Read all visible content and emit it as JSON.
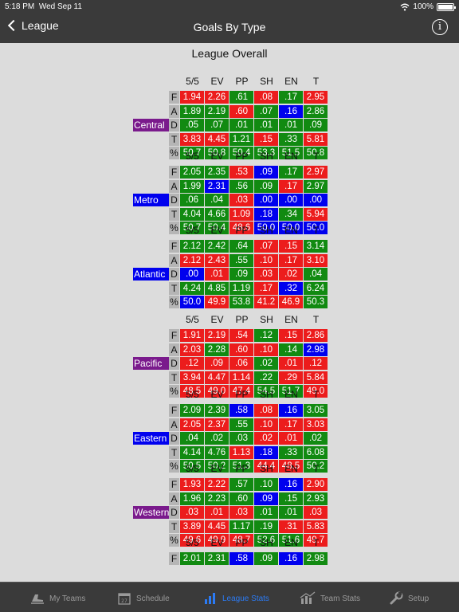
{
  "status": {
    "time": "5:18 PM",
    "date": "Wed Sep 11",
    "battery": "100%"
  },
  "nav": {
    "back_label": "League",
    "title": "Goals By Type",
    "info_glyph": "i"
  },
  "section_title": "League Overall",
  "columns": [
    "5/5",
    "EV",
    "PP",
    "SH",
    "EN",
    "T"
  ],
  "row_labels": [
    "F",
    "A",
    "D",
    "T",
    "%"
  ],
  "colors": {
    "green": "#118a11",
    "red": "#ec1c1c",
    "blue": "#0000ee",
    "purple": "#7a1a8c",
    "active_tab": "#2b7bf5"
  },
  "groups": [
    {
      "division": "Central",
      "division_color": "purple",
      "rows": [
        {
          "values": [
            "1.94",
            "2.26",
            ".61",
            ".08",
            ".17",
            "2.95"
          ],
          "colors": [
            "r",
            "r",
            "g",
            "r",
            "g",
            "r"
          ]
        },
        {
          "values": [
            "1.89",
            "2.19",
            ".60",
            ".07",
            ".16",
            "2.86"
          ],
          "colors": [
            "g",
            "g",
            "r",
            "g",
            "b",
            "g"
          ]
        },
        {
          "values": [
            ".05",
            ".07",
            ".01",
            ".01",
            ".01",
            ".09"
          ],
          "colors": [
            "g",
            "g",
            "g",
            "g",
            "g",
            "g"
          ]
        },
        {
          "values": [
            "3.83",
            "4.45",
            "1.21",
            ".15",
            ".33",
            "5.81"
          ],
          "colors": [
            "r",
            "r",
            "g",
            "r",
            "g",
            "r"
          ]
        },
        {
          "values": [
            "50.7",
            "50.8",
            "50.4",
            "53.3",
            "51.5",
            "50.8"
          ],
          "colors": [
            "g",
            "g",
            "g",
            "g",
            "g",
            "g"
          ]
        }
      ]
    },
    {
      "division": "Metro",
      "division_color": "blue",
      "rows": [
        {
          "values": [
            "2.05",
            "2.35",
            ".53",
            ".09",
            ".17",
            "2.97"
          ],
          "colors": [
            "g",
            "g",
            "r",
            "b",
            "g",
            "r"
          ]
        },
        {
          "values": [
            "1.99",
            "2.31",
            ".56",
            ".09",
            ".17",
            "2.97"
          ],
          "colors": [
            "g",
            "b",
            "g",
            "g",
            "r",
            "g"
          ]
        },
        {
          "values": [
            ".06",
            ".04",
            ".03",
            ".00",
            ".00",
            ".00"
          ],
          "colors": [
            "g",
            "g",
            "r",
            "b",
            "b",
            "b"
          ]
        },
        {
          "values": [
            "4.04",
            "4.66",
            "1.09",
            ".18",
            ".34",
            "5.94"
          ],
          "colors": [
            "g",
            "g",
            "r",
            "b",
            "g",
            "r"
          ]
        },
        {
          "values": [
            "50.7",
            "50.4",
            "48.6",
            "50.0",
            "50.0",
            "50.0"
          ],
          "colors": [
            "g",
            "g",
            "r",
            "b",
            "b",
            "b"
          ]
        }
      ]
    },
    {
      "division": "Atlantic",
      "division_color": "blue",
      "rows": [
        {
          "values": [
            "2.12",
            "2.42",
            ".64",
            ".07",
            ".15",
            "3.14"
          ],
          "colors": [
            "g",
            "g",
            "g",
            "r",
            "r",
            "g"
          ]
        },
        {
          "values": [
            "2.12",
            "2.43",
            ".55",
            ".10",
            ".17",
            "3.10"
          ],
          "colors": [
            "r",
            "r",
            "g",
            "r",
            "r",
            "r"
          ]
        },
        {
          "values": [
            ".00",
            ".01",
            ".09",
            ".03",
            ".02",
            ".04"
          ],
          "colors": [
            "b",
            "r",
            "g",
            "r",
            "r",
            "g"
          ]
        },
        {
          "values": [
            "4.24",
            "4.85",
            "1.19",
            ".17",
            ".32",
            "6.24"
          ],
          "colors": [
            "g",
            "g",
            "g",
            "r",
            "b",
            "g"
          ]
        },
        {
          "values": [
            "50.0",
            "49.9",
            "53.8",
            "41.2",
            "46.9",
            "50.3"
          ],
          "colors": [
            "b",
            "r",
            "g",
            "r",
            "r",
            "g"
          ]
        }
      ]
    },
    {
      "division": "Pacific",
      "division_color": "purple",
      "rows": [
        {
          "values": [
            "1.91",
            "2.19",
            ".54",
            ".12",
            ".15",
            "2.86"
          ],
          "colors": [
            "r",
            "r",
            "r",
            "g",
            "r",
            "r"
          ]
        },
        {
          "values": [
            "2.03",
            "2.28",
            ".60",
            ".10",
            ".14",
            "2.98"
          ],
          "colors": [
            "r",
            "g",
            "r",
            "r",
            "g",
            "b"
          ]
        },
        {
          "values": [
            ".12",
            ".09",
            ".06",
            ".02",
            ".01",
            ".12"
          ],
          "colors": [
            "r",
            "r",
            "r",
            "g",
            "r",
            "r"
          ]
        },
        {
          "values": [
            "3.94",
            "4.47",
            "1.14",
            ".22",
            ".29",
            "5.84"
          ],
          "colors": [
            "r",
            "r",
            "r",
            "g",
            "r",
            "r"
          ]
        },
        {
          "values": [
            "48.5",
            "49.0",
            "47.4",
            "54.5",
            "51.7",
            "49.0"
          ],
          "colors": [
            "r",
            "r",
            "r",
            "g",
            "g",
            "r"
          ]
        }
      ]
    },
    {
      "division": "Eastern",
      "division_color": "blue",
      "rows": [
        {
          "values": [
            "2.09",
            "2.39",
            ".58",
            ".08",
            ".16",
            "3.05"
          ],
          "colors": [
            "g",
            "g",
            "b",
            "r",
            "b",
            "g"
          ]
        },
        {
          "values": [
            "2.05",
            "2.37",
            ".55",
            ".10",
            ".17",
            "3.03"
          ],
          "colors": [
            "r",
            "r",
            "g",
            "r",
            "r",
            "r"
          ]
        },
        {
          "values": [
            ".04",
            ".02",
            ".03",
            ".02",
            ".01",
            ".02"
          ],
          "colors": [
            "g",
            "g",
            "g",
            "r",
            "r",
            "g"
          ]
        },
        {
          "values": [
            "4.14",
            "4.76",
            "1.13",
            ".18",
            ".33",
            "6.08"
          ],
          "colors": [
            "g",
            "g",
            "r",
            "b",
            "g",
            "g"
          ]
        },
        {
          "values": [
            "50.5",
            "50.2",
            "51.3",
            "44.4",
            "48.5",
            "50.2"
          ],
          "colors": [
            "g",
            "g",
            "g",
            "r",
            "r",
            "g"
          ]
        }
      ]
    },
    {
      "division": "Western",
      "division_color": "purple",
      "rows": [
        {
          "values": [
            "1.93",
            "2.22",
            ".57",
            ".10",
            ".16",
            "2.90"
          ],
          "colors": [
            "r",
            "r",
            "g",
            "g",
            "b",
            "r"
          ]
        },
        {
          "values": [
            "1.96",
            "2.23",
            ".60",
            ".09",
            ".15",
            "2.93"
          ],
          "colors": [
            "g",
            "g",
            "g",
            "b",
            "g",
            "g"
          ]
        },
        {
          "values": [
            ".03",
            ".01",
            ".03",
            ".01",
            ".01",
            ".03"
          ],
          "colors": [
            "r",
            "r",
            "r",
            "g",
            "g",
            "r"
          ]
        },
        {
          "values": [
            "3.89",
            "4.45",
            "1.17",
            ".19",
            ".31",
            "5.83"
          ],
          "colors": [
            "r",
            "r",
            "g",
            "g",
            "r",
            "r"
          ]
        },
        {
          "values": [
            "49.6",
            "49.9",
            "48.7",
            "52.6",
            "51.6",
            "49.7"
          ],
          "colors": [
            "r",
            "r",
            "r",
            "g",
            "g",
            "r"
          ]
        }
      ]
    },
    {
      "division": "",
      "division_color": "blue",
      "rows": [
        {
          "values": [
            "2.01",
            "2.31",
            ".58",
            ".09",
            ".16",
            "2.98"
          ],
          "colors": [
            "g",
            "g",
            "b",
            "g",
            "b",
            "g"
          ]
        }
      ]
    }
  ],
  "tabs": [
    {
      "label": "My Teams",
      "icon": "skates-icon",
      "active": false
    },
    {
      "label": "Schedule",
      "icon": "calendar-icon",
      "active": false
    },
    {
      "label": "League Stats",
      "icon": "bar-chart-icon",
      "active": true
    },
    {
      "label": "Team Stats",
      "icon": "chart-icon",
      "active": false
    },
    {
      "label": "Setup",
      "icon": "wrench-icon",
      "active": false
    }
  ]
}
